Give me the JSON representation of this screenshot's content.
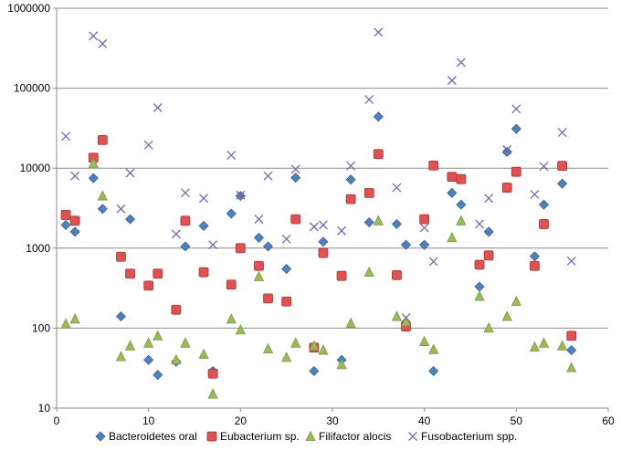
{
  "chart_data": {
    "type": "scatter",
    "title": "",
    "xlabel": "",
    "ylabel": "",
    "x_scale": "linear",
    "y_scale": "log",
    "xlim": [
      0,
      60
    ],
    "ylim": [
      10,
      1000000
    ],
    "x_ticks": [
      "0",
      "10",
      "20",
      "30",
      "40",
      "50",
      "60"
    ],
    "y_ticks": [
      "10",
      "100",
      "1000",
      "10000",
      "100000",
      "1000000"
    ],
    "grid": "horizontal",
    "legend_position": "bottom",
    "series": [
      {
        "name": "Bacteroidetes oral",
        "marker": "diamond",
        "color": "#4f81bd",
        "points": [
          [
            1,
            1950
          ],
          [
            2,
            1600
          ],
          [
            4,
            7500
          ],
          [
            5,
            3100
          ],
          [
            7,
            140
          ],
          [
            8,
            2300
          ],
          [
            10,
            40
          ],
          [
            11,
            26
          ],
          [
            13,
            38
          ],
          [
            14,
            1050
          ],
          [
            16,
            1900
          ],
          [
            17,
            29
          ],
          [
            19,
            2700
          ],
          [
            20,
            4500
          ],
          [
            22,
            1350
          ],
          [
            23,
            1050
          ],
          [
            25,
            550
          ],
          [
            26,
            7600
          ],
          [
            28,
            29
          ],
          [
            29,
            1200
          ],
          [
            31,
            40
          ],
          [
            32,
            7200
          ],
          [
            34,
            2100
          ],
          [
            35,
            44000
          ],
          [
            37,
            2000
          ],
          [
            38,
            1100
          ],
          [
            40,
            1100
          ],
          [
            41,
            29
          ],
          [
            43,
            4900
          ],
          [
            44,
            3500
          ],
          [
            46,
            330
          ],
          [
            47,
            1600
          ],
          [
            49,
            16000
          ],
          [
            50,
            31000
          ],
          [
            52,
            790
          ],
          [
            53,
            3500
          ],
          [
            55,
            6400
          ],
          [
            56,
            53
          ]
        ]
      },
      {
        "name": "Eubacterium sp.",
        "marker": "square",
        "color": "#e05252",
        "points": [
          [
            1,
            2600
          ],
          [
            2,
            2200
          ],
          [
            4,
            13500
          ],
          [
            5,
            22500
          ],
          [
            7,
            780
          ],
          [
            8,
            480
          ],
          [
            10,
            340
          ],
          [
            11,
            480
          ],
          [
            13,
            170
          ],
          [
            14,
            2200
          ],
          [
            16,
            500
          ],
          [
            17,
            27
          ],
          [
            19,
            350
          ],
          [
            20,
            1000
          ],
          [
            22,
            600
          ],
          [
            23,
            235
          ],
          [
            25,
            215
          ],
          [
            26,
            2300
          ],
          [
            28,
            57
          ],
          [
            29,
            870
          ],
          [
            31,
            450
          ],
          [
            32,
            4100
          ],
          [
            34,
            4900
          ],
          [
            35,
            15000
          ],
          [
            37,
            460
          ],
          [
            38,
            105
          ],
          [
            40,
            2300
          ],
          [
            41,
            10800
          ],
          [
            43,
            7800
          ],
          [
            44,
            7300
          ],
          [
            46,
            620
          ],
          [
            47,
            810
          ],
          [
            49,
            5700
          ],
          [
            50,
            9000
          ],
          [
            52,
            600
          ],
          [
            53,
            2000
          ],
          [
            55,
            10700
          ],
          [
            56,
            80
          ]
        ]
      },
      {
        "name": "Filifactor alocis",
        "marker": "triangle",
        "color": "#9bbb59",
        "points": [
          [
            1,
            113
          ],
          [
            2,
            130
          ],
          [
            4,
            11500
          ],
          [
            5,
            4500
          ],
          [
            7,
            44
          ],
          [
            8,
            60
          ],
          [
            10,
            65
          ],
          [
            11,
            80
          ],
          [
            13,
            40
          ],
          [
            14,
            65
          ],
          [
            16,
            47
          ],
          [
            17,
            15
          ],
          [
            19,
            130
          ],
          [
            20,
            95
          ],
          [
            22,
            440
          ],
          [
            23,
            55
          ],
          [
            25,
            43
          ],
          [
            26,
            65
          ],
          [
            28,
            60
          ],
          [
            29,
            53
          ],
          [
            31,
            35
          ],
          [
            32,
            115
          ],
          [
            34,
            500
          ],
          [
            35,
            2200
          ],
          [
            37,
            140
          ],
          [
            38,
            120
          ],
          [
            40,
            68
          ],
          [
            41,
            54
          ],
          [
            43,
            1350
          ],
          [
            44,
            2200
          ],
          [
            46,
            250
          ],
          [
            47,
            100
          ],
          [
            49,
            140
          ],
          [
            50,
            215
          ],
          [
            52,
            58
          ],
          [
            53,
            65
          ],
          [
            55,
            60
          ],
          [
            56,
            32
          ]
        ]
      },
      {
        "name": "Fusobacterium spp.",
        "marker": "x",
        "color": "#7b68a6",
        "points": [
          [
            1,
            25000
          ],
          [
            2,
            8000
          ],
          [
            4,
            450000
          ],
          [
            5,
            360000
          ],
          [
            7,
            3100
          ],
          [
            8,
            8700
          ],
          [
            10,
            19500
          ],
          [
            11,
            57000
          ],
          [
            13,
            1500
          ],
          [
            14,
            4900
          ],
          [
            16,
            4200
          ],
          [
            17,
            1100
          ],
          [
            19,
            14500
          ],
          [
            20,
            4600
          ],
          [
            22,
            2300
          ],
          [
            23,
            8000
          ],
          [
            25,
            1300
          ],
          [
            26,
            9700
          ],
          [
            28,
            1850
          ],
          [
            29,
            1950
          ],
          [
            31,
            1650
          ],
          [
            32,
            10700
          ],
          [
            34,
            72000
          ],
          [
            35,
            500000
          ],
          [
            37,
            5700
          ],
          [
            38,
            135
          ],
          [
            40,
            1800
          ],
          [
            41,
            680
          ],
          [
            43,
            125000
          ],
          [
            44,
            210000
          ],
          [
            46,
            2000
          ],
          [
            47,
            4200
          ],
          [
            49,
            17000
          ],
          [
            50,
            55000
          ],
          [
            52,
            4700
          ],
          [
            53,
            10500
          ],
          [
            55,
            28000
          ],
          [
            56,
            690
          ]
        ]
      }
    ]
  }
}
